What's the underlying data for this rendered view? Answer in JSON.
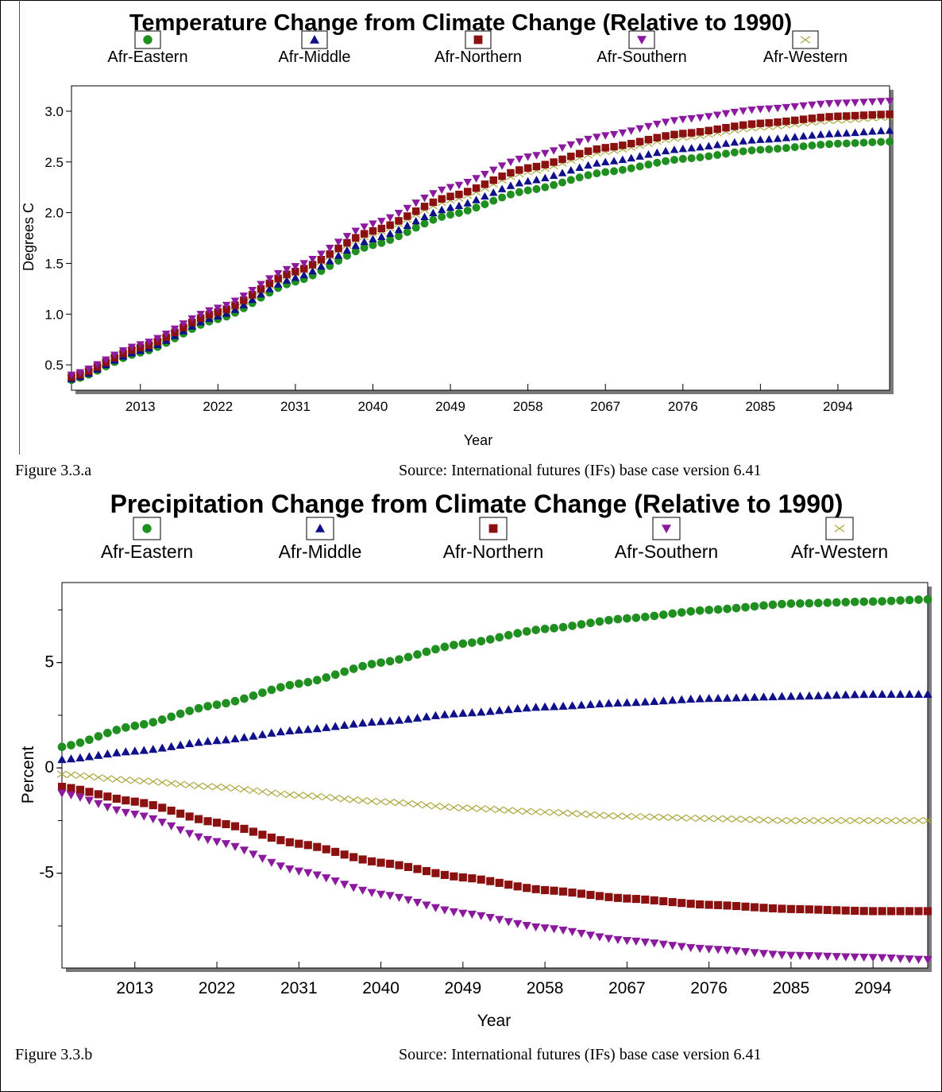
{
  "chart_data": [
    {
      "type": "scatter",
      "title": "Temperature Change from Climate Change (Relative to 1990)",
      "xlabel": "Year",
      "ylabel": "Degrees C",
      "xlim": [
        2005,
        2100
      ],
      "ylim": [
        0.25,
        3.25
      ],
      "xticks": [
        "2013",
        "2022",
        "2031",
        "2040",
        "2049",
        "2058",
        "2067",
        "2076",
        "2085",
        "2094"
      ],
      "yticks": [
        "0.5",
        "1.0",
        "1.5",
        "2.0",
        "2.5",
        "3.0"
      ],
      "legend_position": "top",
      "x": [
        2005,
        2013,
        2022,
        2031,
        2040,
        2049,
        2058,
        2067,
        2076,
        2085,
        2094,
        2100
      ],
      "series": [
        {
          "name": "Afr-Eastern",
          "marker": "circle",
          "color": "#1f8f1f",
          "values": [
            0.35,
            0.62,
            0.95,
            1.32,
            1.68,
            1.98,
            2.22,
            2.4,
            2.53,
            2.62,
            2.68,
            2.7
          ]
        },
        {
          "name": "Afr-Middle",
          "marker": "triangle-up",
          "color": "#10108a",
          "values": [
            0.36,
            0.64,
            0.98,
            1.36,
            1.74,
            2.05,
            2.31,
            2.5,
            2.63,
            2.72,
            2.78,
            2.81
          ]
        },
        {
          "name": "Afr-Northern",
          "marker": "square",
          "color": "#8b1010",
          "values": [
            0.38,
            0.67,
            1.02,
            1.42,
            1.82,
            2.16,
            2.44,
            2.64,
            2.78,
            2.88,
            2.95,
            2.97
          ]
        },
        {
          "name": "Afr-Southern",
          "marker": "triangle-down",
          "color": "#8b1a9e",
          "values": [
            0.4,
            0.7,
            1.06,
            1.47,
            1.89,
            2.25,
            2.55,
            2.76,
            2.92,
            3.02,
            3.08,
            3.1
          ]
        },
        {
          "name": "Afr-Western",
          "marker": "x",
          "color": "#a9a63a",
          "values": [
            0.37,
            0.66,
            1.0,
            1.4,
            1.79,
            2.12,
            2.4,
            2.6,
            2.74,
            2.84,
            2.91,
            2.94
          ]
        }
      ]
    },
    {
      "type": "scatter",
      "title": "Precipitation Change from Climate Change  (Relative to 1990)",
      "xlabel": "Year",
      "ylabel": "Percent",
      "xlim": [
        2005,
        2100
      ],
      "ylim": [
        -9.5,
        8.8
      ],
      "xticks": [
        "2013",
        "2022",
        "2031",
        "2040",
        "2049",
        "2058",
        "2067",
        "2076",
        "2085",
        "2094"
      ],
      "yticks": [
        "5",
        "0",
        "-5"
      ],
      "legend_position": "top",
      "x": [
        2005,
        2013,
        2022,
        2031,
        2040,
        2049,
        2058,
        2067,
        2076,
        2085,
        2094,
        2100
      ],
      "series": [
        {
          "name": "Afr-Eastern",
          "marker": "circle",
          "color": "#1f8f1f",
          "values": [
            1.0,
            2.0,
            3.0,
            4.0,
            5.0,
            5.9,
            6.6,
            7.1,
            7.5,
            7.8,
            7.9,
            8.0
          ]
        },
        {
          "name": "Afr-Middle",
          "marker": "triangle-up",
          "color": "#10108a",
          "values": [
            0.4,
            0.8,
            1.3,
            1.8,
            2.2,
            2.6,
            2.9,
            3.1,
            3.3,
            3.4,
            3.5,
            3.5
          ]
        },
        {
          "name": "Afr-Northern",
          "marker": "square",
          "color": "#8b1010",
          "values": [
            -0.9,
            -1.6,
            -2.6,
            -3.6,
            -4.5,
            -5.2,
            -5.8,
            -6.2,
            -6.5,
            -6.7,
            -6.8,
            -6.8
          ]
        },
        {
          "name": "Afr-Southern",
          "marker": "triangle-down",
          "color": "#8b1a9e",
          "values": [
            -1.2,
            -2.2,
            -3.5,
            -4.9,
            -6.0,
            -6.9,
            -7.6,
            -8.2,
            -8.6,
            -8.9,
            -9.0,
            -9.1
          ]
        },
        {
          "name": "Afr-Western",
          "marker": "x",
          "color": "#a9a63a",
          "values": [
            -0.3,
            -0.6,
            -0.9,
            -1.3,
            -1.6,
            -1.9,
            -2.1,
            -2.3,
            -2.4,
            -2.5,
            -2.5,
            -2.5
          ]
        }
      ]
    }
  ],
  "captions": [
    {
      "figure": "Figure 3.3.a",
      "source": "Source: International futures (IFs) base case version 6.41"
    },
    {
      "figure": "Figure 3.3.b",
      "source": "Source: International futures (IFs) base case version 6.41"
    }
  ]
}
